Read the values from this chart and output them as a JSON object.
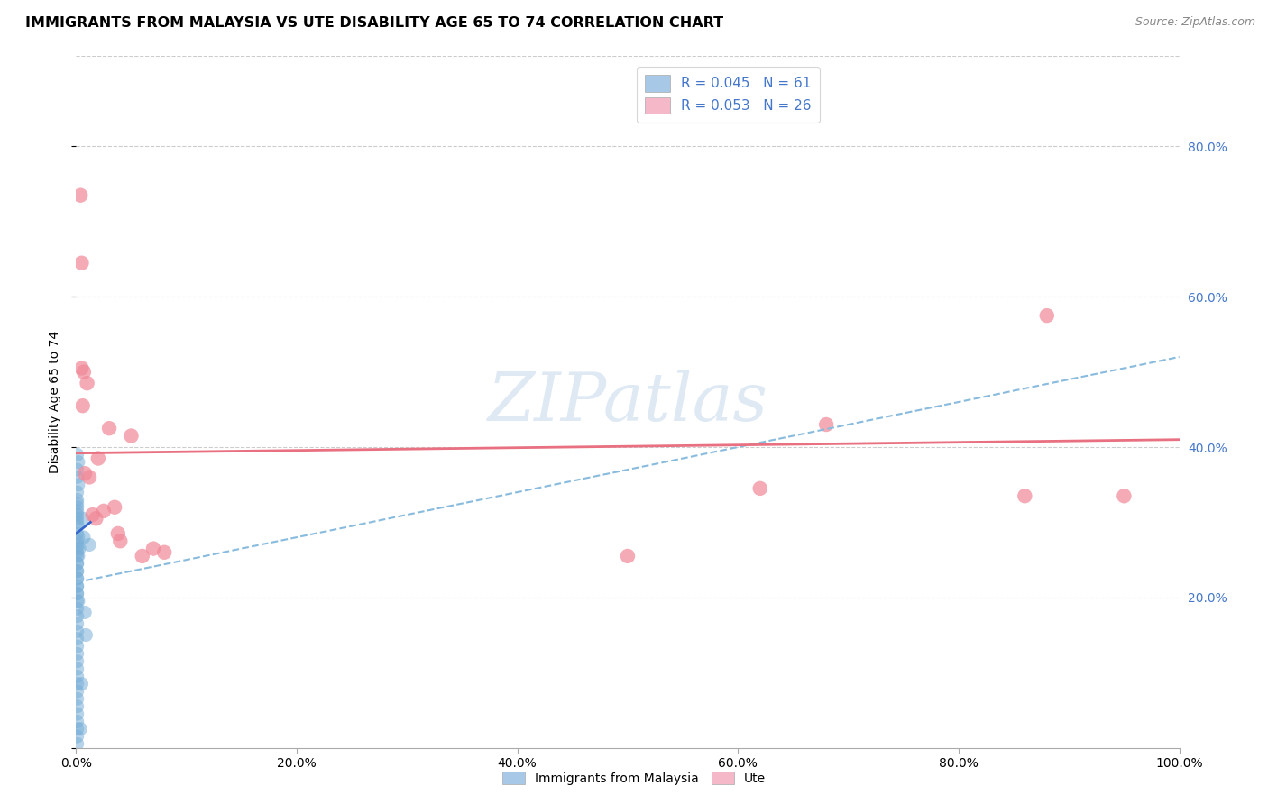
{
  "title": "IMMIGRANTS FROM MALAYSIA VS UTE DISABILITY AGE 65 TO 74 CORRELATION CHART",
  "source": "Source: ZipAtlas.com",
  "ylabel": "Disability Age 65 to 74",
  "xlim": [
    0.0,
    1.0
  ],
  "ylim": [
    0.0,
    0.92
  ],
  "xticks": [
    0.0,
    0.2,
    0.4,
    0.6,
    0.8,
    1.0
  ],
  "xtick_labels": [
    "0.0%",
    "20.0%",
    "40.0%",
    "60.0%",
    "80.0%",
    "100.0%"
  ],
  "yticks_right": [
    0.2,
    0.4,
    0.6,
    0.8
  ],
  "ytick_labels_right": [
    "20.0%",
    "40.0%",
    "60.0%",
    "80.0%"
  ],
  "legend_label1": "R = 0.045   N = 61",
  "legend_label2": "R = 0.053   N = 26",
  "legend_color1": "#a8c8e8",
  "legend_color2": "#f4b8c8",
  "scatter_color1": "#7ab0d8",
  "scatter_color2": "#f08898",
  "trend_solid_color": "#3366cc",
  "trend_dashed_color": "#88bbdd",
  "trend_pink_color": "#e87080",
  "watermark": "ZIPatlas",
  "blue_scatter_x": [
    0.001,
    0.002,
    0.001,
    0.001,
    0.002,
    0.001,
    0.001,
    0.001,
    0.001,
    0.001,
    0.001,
    0.001,
    0.001,
    0.002,
    0.001,
    0.001,
    0.001,
    0.001,
    0.001,
    0.002,
    0.001,
    0.001,
    0.001,
    0.001,
    0.001,
    0.001,
    0.001,
    0.001,
    0.001,
    0.001,
    0.001,
    0.001,
    0.001,
    0.001,
    0.001,
    0.001,
    0.001,
    0.001,
    0.001,
    0.001,
    0.001,
    0.001,
    0.001,
    0.001,
    0.001,
    0.001,
    0.001,
    0.001,
    0.001,
    0.001,
    0.001,
    0.001,
    0.002,
    0.003,
    0.004,
    0.005,
    0.006,
    0.007,
    0.008,
    0.009,
    0.012
  ],
  "blue_scatter_y": [
    0.39,
    0.38,
    0.36,
    0.37,
    0.35,
    0.34,
    0.33,
    0.32,
    0.31,
    0.3,
    0.285,
    0.275,
    0.265,
    0.255,
    0.245,
    0.235,
    0.225,
    0.215,
    0.205,
    0.195,
    0.27,
    0.26,
    0.255,
    0.245,
    0.235,
    0.225,
    0.215,
    0.205,
    0.195,
    0.185,
    0.175,
    0.165,
    0.155,
    0.145,
    0.135,
    0.125,
    0.115,
    0.105,
    0.095,
    0.085,
    0.075,
    0.065,
    0.055,
    0.045,
    0.035,
    0.025,
    0.015,
    0.005,
    0.295,
    0.305,
    0.315,
    0.325,
    0.28,
    0.265,
    0.025,
    0.085,
    0.305,
    0.28,
    0.18,
    0.15,
    0.27
  ],
  "pink_scatter_x": [
    0.004,
    0.005,
    0.005,
    0.006,
    0.007,
    0.008,
    0.01,
    0.012,
    0.015,
    0.018,
    0.02,
    0.025,
    0.03,
    0.035,
    0.038,
    0.04,
    0.05,
    0.06,
    0.07,
    0.08,
    0.5,
    0.62,
    0.68,
    0.86,
    0.88,
    0.95
  ],
  "pink_scatter_y": [
    0.735,
    0.645,
    0.505,
    0.455,
    0.5,
    0.365,
    0.485,
    0.36,
    0.31,
    0.305,
    0.385,
    0.315,
    0.425,
    0.32,
    0.285,
    0.275,
    0.415,
    0.255,
    0.265,
    0.26,
    0.255,
    0.345,
    0.43,
    0.335,
    0.575,
    0.335
  ],
  "blue_solid_trend_x": [
    0.0,
    0.013
  ],
  "blue_solid_trend_y": [
    0.285,
    0.3
  ],
  "blue_dashed_trend_x": [
    0.0,
    1.0
  ],
  "blue_dashed_trend_y": [
    0.22,
    0.52
  ],
  "pink_trend_x": [
    0.0,
    1.0
  ],
  "pink_trend_y": [
    0.392,
    0.41
  ],
  "background_color": "#ffffff",
  "grid_color": "#cccccc",
  "title_fontsize": 11.5,
  "axis_label_fontsize": 10,
  "tick_fontsize": 10,
  "right_tick_color": "#4477cc"
}
